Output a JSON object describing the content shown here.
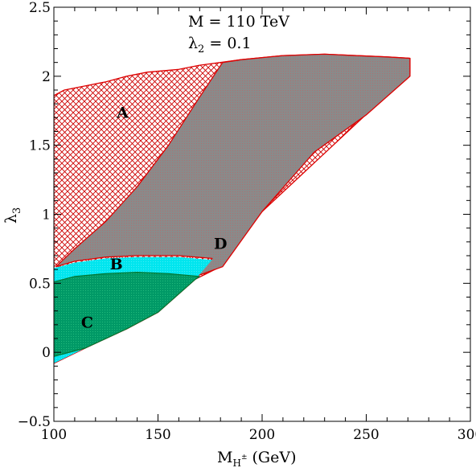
{
  "chart_data": {
    "type": "area",
    "xlabel_main": "M",
    "xlabel_sub": "H",
    "xlabel_sup": "±",
    "xlabel_unit": " (GeV)",
    "ylabel_main": "λ",
    "ylabel_sub": "3",
    "xlim": [
      100,
      300
    ],
    "ylim": [
      -0.5,
      2.5
    ],
    "xticks": [
      100,
      150,
      200,
      250,
      300
    ],
    "yticks": [
      -0.5,
      0,
      0.5,
      1,
      1.5,
      2,
      2.5
    ],
    "xtick_labels": [
      "100",
      "150",
      "200",
      "250",
      "300"
    ],
    "ytick_labels": [
      "−0.5",
      "0",
      "0.5",
      "1",
      "1.5",
      "2",
      "2.5"
    ],
    "annotation_line1": "M = 110 TeV",
    "annotation_line2_main": "λ",
    "annotation_line2_sub": "2",
    "annotation_line2_rest": " = 0.1",
    "colors": {
      "A": "#cc0000",
      "B": "#00e5ee",
      "C": "#009966",
      "D_fill": "#8a8a8a",
      "outline_red": "#dd0000",
      "outline_green": "#007733"
    },
    "regions": [
      {
        "label": "A",
        "label_at": [
          133,
          1.7
        ],
        "points": [
          [
            100,
            1.86
          ],
          [
            105,
            1.9
          ],
          [
            115,
            1.93
          ],
          [
            125,
            1.96
          ],
          [
            135,
            2.0
          ],
          [
            145,
            2.03
          ],
          [
            160,
            2.05
          ],
          [
            170,
            2.08
          ],
          [
            180,
            2.1
          ],
          [
            190,
            2.12
          ],
          [
            210,
            2.15
          ],
          [
            230,
            2.16
          ],
          [
            260,
            2.14
          ],
          [
            271,
            2.13
          ],
          [
            271,
            2.02
          ],
          [
            200,
            1.02
          ],
          [
            180,
            0.62
          ],
          [
            168,
            0.53
          ],
          [
            150,
            0.29
          ],
          [
            135,
            0.17
          ],
          [
            115,
            0.03
          ],
          [
            100,
            -0.08
          ]
        ]
      },
      {
        "label": "B",
        "label_at": [
          130,
          0.6
        ],
        "points": [
          [
            100,
            0.61
          ],
          [
            110,
            0.65
          ],
          [
            125,
            0.68
          ],
          [
            140,
            0.69
          ],
          [
            160,
            0.69
          ],
          [
            176,
            0.67
          ],
          [
            168,
            0.53
          ],
          [
            150,
            0.29
          ],
          [
            135,
            0.17
          ],
          [
            115,
            0.03
          ],
          [
            100,
            -0.08
          ]
        ]
      },
      {
        "label": "C",
        "label_at": [
          116,
          0.18
        ],
        "points": [
          [
            100,
            0.51
          ],
          [
            110,
            0.55
          ],
          [
            125,
            0.57
          ],
          [
            140,
            0.58
          ],
          [
            155,
            0.57
          ],
          [
            170,
            0.55
          ],
          [
            168,
            0.53
          ],
          [
            150,
            0.29
          ],
          [
            135,
            0.17
          ],
          [
            115,
            0.03
          ],
          [
            100,
            -0.03
          ]
        ]
      },
      {
        "label": "D",
        "label_at": [
          180,
          0.75
        ],
        "points": [
          [
            101,
            0.62
          ],
          [
            110,
            0.66
          ],
          [
            125,
            0.69
          ],
          [
            140,
            0.7
          ],
          [
            160,
            0.7
          ],
          [
            176,
            0.68
          ],
          [
            168,
            0.55
          ],
          [
            181,
            0.62
          ],
          [
            200,
            1.02
          ],
          [
            225,
            1.45
          ],
          [
            250,
            1.72
          ],
          [
            271,
            2.0
          ],
          [
            271,
            2.13
          ],
          [
            260,
            2.14
          ],
          [
            230,
            2.16
          ],
          [
            210,
            2.15
          ],
          [
            190,
            2.12
          ],
          [
            181,
            2.1
          ],
          [
            170,
            1.85
          ],
          [
            155,
            1.5
          ],
          [
            140,
            1.2
          ],
          [
            125,
            0.95
          ],
          [
            110,
            0.75
          ]
        ]
      }
    ]
  }
}
